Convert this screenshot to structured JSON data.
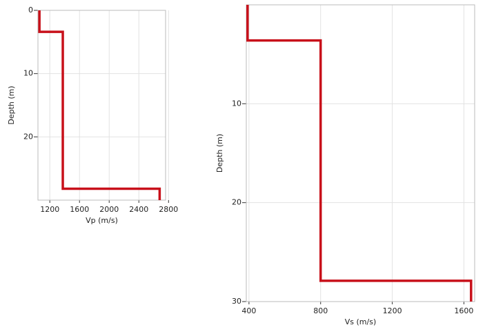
{
  "chart_data": [
    {
      "type": "line",
      "xlabel": "Vp (m/s)",
      "ylabel": "Depth (m)",
      "x": [
        1060,
        1060,
        1375,
        1375,
        2680,
        2680
      ],
      "series": [
        {
          "color": "#c8101a",
          "values": [
            0,
            3.4,
            3.4,
            28.2,
            28.2,
            30
          ]
        }
      ],
      "xlim": [
        1040,
        2760
      ],
      "ylim": [
        0,
        30
      ],
      "y_inverted": true,
      "xticks": [
        1200,
        1600,
        2000,
        2400,
        2800
      ],
      "yticks": [
        0,
        10,
        20
      ],
      "grid": true
    },
    {
      "type": "line",
      "xlabel": "Vs (m/s)",
      "ylabel": "Depth (m)",
      "x": [
        392,
        392,
        800,
        800,
        1640,
        1640
      ],
      "series": [
        {
          "color": "#c8101a",
          "values": [
            0,
            3.6,
            3.6,
            27.9,
            27.9,
            30
          ]
        }
      ],
      "xlim": [
        385,
        1660
      ],
      "ylim": [
        0,
        30
      ],
      "y_inverted": true,
      "xticks": [
        400,
        800,
        1200,
        1600
      ],
      "yticks": [
        10,
        20,
        30
      ],
      "grid": true
    }
  ]
}
